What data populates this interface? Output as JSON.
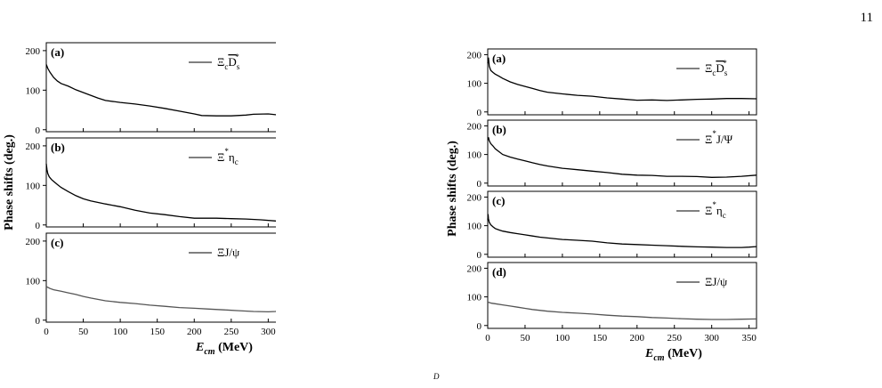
{
  "page_number": "11",
  "stray_mark": "D",
  "chart_data": [
    {
      "type": "line",
      "ylabel": "Phase shifts (deg.)",
      "xlabel": "E",
      "xlabel_sub": "cm",
      "xlabel_unit": "(MeV)",
      "xlim": [
        0,
        320
      ],
      "xticks": [
        0,
        50,
        100,
        150,
        200,
        250,
        300
      ],
      "panels": [
        {
          "tag": "(a)",
          "ylim": [
            -5,
            220
          ],
          "yticks": [
            0,
            100,
            200
          ],
          "color": "#000000",
          "legend": {
            "base": "Ξ",
            "sub": "c",
            "over": "D",
            "sub2": "s",
            "sup": "*"
          },
          "x": [
            0,
            2,
            5,
            10,
            15,
            20,
            30,
            40,
            50,
            60,
            70,
            80,
            100,
            120,
            140,
            160,
            180,
            200,
            210,
            230,
            250,
            270,
            280,
            300,
            310,
            318
          ],
          "y": [
            165,
            155,
            145,
            132,
            123,
            117,
            110,
            101,
            94,
            87,
            80,
            74,
            69,
            65,
            60,
            54,
            47,
            40,
            36,
            35,
            35,
            37,
            39,
            40,
            38,
            37
          ]
        },
        {
          "tag": "(b)",
          "ylim": [
            -5,
            220
          ],
          "yticks": [
            0,
            100,
            200
          ],
          "color": "#000000",
          "legend": {
            "base": "Ξ",
            "sup": "*",
            "rest": "η",
            "rest_sub": "c"
          },
          "x": [
            0,
            1,
            2,
            4,
            7,
            10,
            15,
            20,
            30,
            40,
            50,
            60,
            80,
            100,
            120,
            140,
            160,
            180,
            200,
            210,
            230,
            250,
            270,
            290,
            310,
            320
          ],
          "y": [
            155,
            140,
            130,
            122,
            115,
            110,
            102,
            95,
            84,
            74,
            66,
            61,
            53,
            46,
            37,
            30,
            26,
            21,
            17,
            17,
            17,
            16,
            15,
            13,
            10,
            7
          ]
        },
        {
          "tag": "(c)",
          "ylim": [
            -5,
            220
          ],
          "yticks": [
            0,
            100,
            200
          ],
          "color": "#555555",
          "legend": {
            "base": "ΞJ/ψ"
          },
          "x": [
            0,
            5,
            10,
            20,
            30,
            40,
            50,
            60,
            80,
            100,
            120,
            140,
            160,
            180,
            200,
            220,
            240,
            260,
            280,
            300,
            310,
            315,
            320
          ],
          "y": [
            85,
            80,
            77,
            73,
            69,
            65,
            60,
            56,
            49,
            45,
            42,
            38,
            35,
            32,
            30,
            28,
            26,
            24,
            22,
            21,
            22,
            27,
            30
          ]
        }
      ]
    },
    {
      "type": "line",
      "ylabel": "Phase shifts (deg.)",
      "xlabel": "E",
      "xlabel_sub": "cm",
      "xlabel_unit": "(MeV)",
      "xlim": [
        0,
        360
      ],
      "xticks": [
        0,
        50,
        100,
        150,
        200,
        250,
        300,
        350
      ],
      "panels": [
        {
          "tag": "(a)",
          "ylim": [
            -10,
            220
          ],
          "yticks": [
            0,
            100,
            200
          ],
          "color": "#000000",
          "legend": {
            "base": "Ξ",
            "sub": "c",
            "over": "D",
            "sub2": "s",
            "sup": "*"
          },
          "x": [
            0,
            1,
            2,
            4,
            7,
            10,
            15,
            20,
            30,
            40,
            50,
            60,
            70,
            80,
            100,
            120,
            140,
            160,
            180,
            200,
            220,
            240,
            260,
            280,
            300,
            320,
            330,
            340,
            360
          ],
          "y": [
            170,
            190,
            160,
            145,
            138,
            132,
            125,
            117,
            105,
            96,
            89,
            82,
            75,
            69,
            63,
            58,
            55,
            49,
            45,
            41,
            42,
            40,
            42,
            44,
            45,
            47,
            47,
            47,
            46
          ]
        },
        {
          "tag": "(b)",
          "ylim": [
            -10,
            220
          ],
          "yticks": [
            0,
            100,
            200
          ],
          "color": "#000000",
          "legend": {
            "base": "Ξ",
            "sup": "*",
            "rest": "J/Ψ"
          },
          "x": [
            0,
            1,
            2,
            4,
            7,
            10,
            15,
            20,
            30,
            40,
            50,
            60,
            70,
            80,
            100,
            120,
            140,
            160,
            180,
            200,
            220,
            240,
            260,
            280,
            300,
            320,
            340,
            360
          ],
          "y": [
            150,
            160,
            148,
            138,
            130,
            120,
            110,
            100,
            91,
            84,
            78,
            71,
            65,
            60,
            52,
            47,
            42,
            37,
            31,
            28,
            27,
            24,
            24,
            23,
            20,
            21,
            24,
            28
          ]
        },
        {
          "tag": "(c)",
          "ylim": [
            -10,
            220
          ],
          "yticks": [
            0,
            100,
            200
          ],
          "color": "#000000",
          "legend": {
            "base": "Ξ",
            "sup": "*",
            "rest": "η",
            "rest_sub": "c"
          },
          "x": [
            0,
            0.5,
            1,
            2,
            4,
            7,
            10,
            15,
            20,
            30,
            40,
            50,
            60,
            70,
            80,
            100,
            120,
            140,
            160,
            180,
            200,
            220,
            240,
            260,
            280,
            300,
            320,
            340,
            350,
            360
          ],
          "y": [
            120,
            140,
            125,
            112,
            103,
            96,
            90,
            85,
            81,
            76,
            72,
            68,
            64,
            60,
            57,
            52,
            49,
            46,
            40,
            36,
            34,
            32,
            30,
            28,
            26,
            25,
            24,
            24,
            25,
            27
          ]
        },
        {
          "tag": "(d)",
          "ylim": [
            -10,
            220
          ],
          "yticks": [
            0,
            100,
            200
          ],
          "color": "#555555",
          "legend": {
            "base": "ΞJ/ψ"
          },
          "x": [
            0,
            5,
            10,
            20,
            30,
            40,
            50,
            60,
            80,
            100,
            120,
            140,
            160,
            180,
            200,
            220,
            240,
            260,
            280,
            300,
            320,
            340,
            360
          ],
          "y": [
            82,
            78,
            76,
            72,
            68,
            64,
            60,
            56,
            50,
            46,
            43,
            40,
            36,
            33,
            31,
            28,
            26,
            24,
            22,
            21,
            21,
            22,
            23
          ]
        }
      ]
    }
  ]
}
